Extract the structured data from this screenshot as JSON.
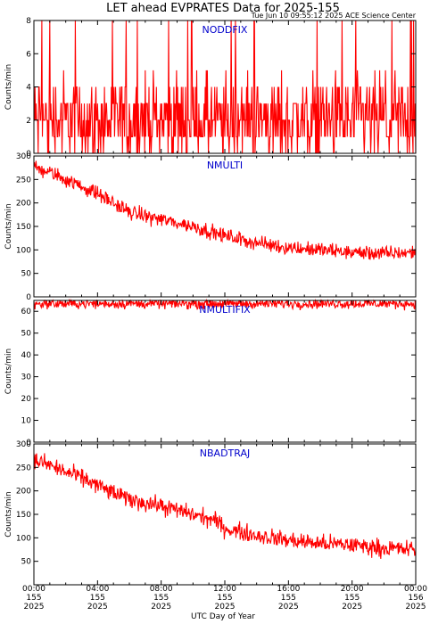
{
  "chart_data": {
    "type": "line",
    "title": "LET ahead EVPRATES Data for 2025-155",
    "timestamp": "Tue Jun 10 09:55:12 2025 ACE Science Center",
    "xlabel": "UTC Day of Year",
    "xlim": [
      "2025-155 00:00",
      "2025-156 00:00"
    ],
    "x_ticks": [
      {
        "time": "00:00",
        "doy": "155",
        "year": "2025"
      },
      {
        "time": "04:00",
        "doy": "155",
        "year": "2025"
      },
      {
        "time": "08:00",
        "doy": "155",
        "year": "2025"
      },
      {
        "time": "12:00",
        "doy": "155",
        "year": "2025"
      },
      {
        "time": "16:00",
        "doy": "155",
        "year": "2025"
      },
      {
        "time": "20:00",
        "doy": "155",
        "year": "2025"
      },
      {
        "time": "00:00",
        "doy": "156",
        "year": "2025"
      }
    ],
    "line_color": "#ff0000",
    "panels": [
      {
        "label": "NODDFIX",
        "ylabel": "Counts/min",
        "ylim": [
          0,
          8
        ],
        "yticks": [
          0,
          2,
          4,
          6,
          8
        ],
        "series": {
          "hours": [
            0,
            24
          ],
          "values": [
            2,
            2
          ],
          "noise": 1.8,
          "discrete": true,
          "spikes": 8
        }
      },
      {
        "label": "NMULTI",
        "ylabel": "Counts/min",
        "ylim": [
          0,
          300
        ],
        "yticks": [
          0,
          50,
          100,
          150,
          200,
          250,
          300
        ],
        "series": {
          "hours": [
            0,
            1,
            2,
            3,
            4,
            5,
            6,
            8,
            10,
            12,
            14,
            16,
            18,
            20,
            22,
            24
          ],
          "values": [
            275,
            265,
            250,
            235,
            220,
            200,
            180,
            165,
            150,
            130,
            115,
            105,
            100,
            95,
            92,
            95
          ],
          "noise": 11
        }
      },
      {
        "label": "NMULTIFIX",
        "ylabel": "Counts/min",
        "ylim": [
          0,
          65
        ],
        "yticks": [
          0,
          10,
          20,
          30,
          40,
          50,
          60
        ],
        "series": {
          "hours": [
            0,
            24
          ],
          "values": [
            63.5,
            63.5
          ],
          "noise": 1.6
        }
      },
      {
        "label": "NBADTRAJ",
        "ylabel": "Counts/min",
        "ylim": [
          0,
          300
        ],
        "yticks": [
          50,
          100,
          150,
          200,
          250,
          300
        ],
        "series": {
          "hours": [
            0,
            1,
            2,
            3,
            4,
            5,
            6,
            8,
            10,
            11.5,
            12,
            14,
            16,
            18,
            20,
            22,
            24
          ],
          "values": [
            265,
            255,
            240,
            228,
            212,
            195,
            182,
            168,
            150,
            135,
            120,
            105,
            95,
            88,
            85,
            78,
            75
          ],
          "noise": 13
        }
      }
    ]
  }
}
